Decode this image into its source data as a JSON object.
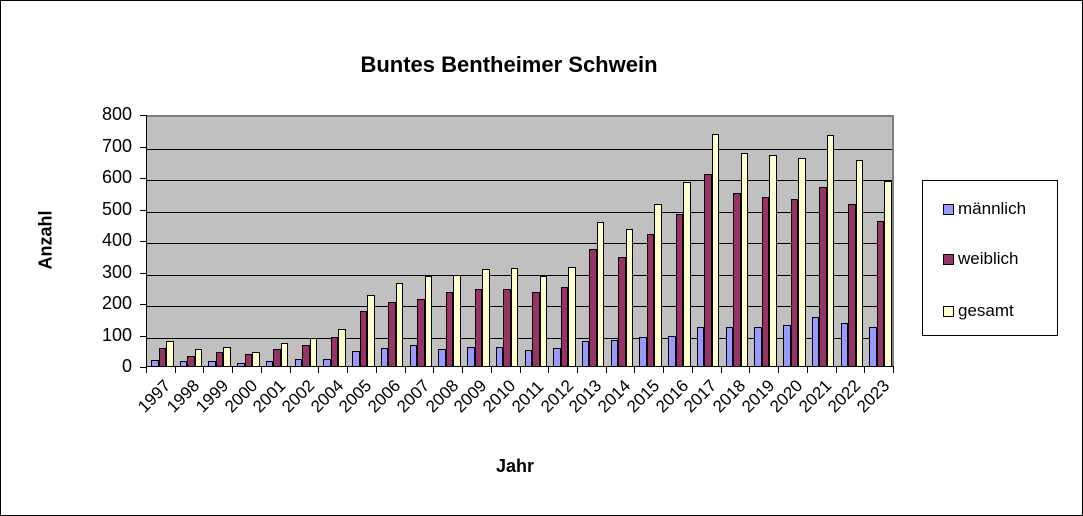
{
  "chart_data": {
    "type": "bar",
    "title": "Buntes Bentheimer Schwein",
    "xlabel": "Jahr",
    "ylabel": "Anzahl",
    "ylim": [
      0,
      800
    ],
    "yticks": [
      0,
      100,
      200,
      300,
      400,
      500,
      600,
      700,
      800
    ],
    "grid": true,
    "legend_position": "right",
    "categories": [
      "1997",
      "1998",
      "1999",
      "2000",
      "2001",
      "2002",
      "2004",
      "2005",
      "2006",
      "2007",
      "2008",
      "2009",
      "2010",
      "2011",
      "2012",
      "2013",
      "2014",
      "2015",
      "2016",
      "2017",
      "2018",
      "2019",
      "2020",
      "2021",
      "2022",
      "2023"
    ],
    "series": [
      {
        "name": "männlich",
        "color": "#9999ff",
        "values": [
          21,
          18,
          19,
          12,
          18,
          25,
          25,
          52,
          61,
          71,
          57,
          65,
          65,
          53,
          61,
          84,
          87,
          96,
          100,
          128,
          128,
          128,
          134,
          160,
          139,
          126
        ]
      },
      {
        "name": "weiblich",
        "color": "#993366",
        "values": [
          59,
          36,
          47,
          41,
          57,
          70,
          94,
          177,
          207,
          216,
          239,
          248,
          248,
          237,
          255,
          374,
          350,
          423,
          487,
          612,
          551,
          541,
          532,
          573,
          516,
          462
        ]
      },
      {
        "name": "gesamt",
        "color": "#ffffcc",
        "values": [
          82,
          56,
          65,
          49,
          76,
          91,
          120,
          228,
          267,
          290,
          292,
          311,
          315,
          290,
          319,
          459,
          439,
          518,
          587,
          740,
          681,
          672,
          664,
          735,
          656,
          589
        ]
      }
    ]
  },
  "colors": {
    "plot_background": "#c0c0c0",
    "gridline": "#000000",
    "frame": "#000000"
  }
}
